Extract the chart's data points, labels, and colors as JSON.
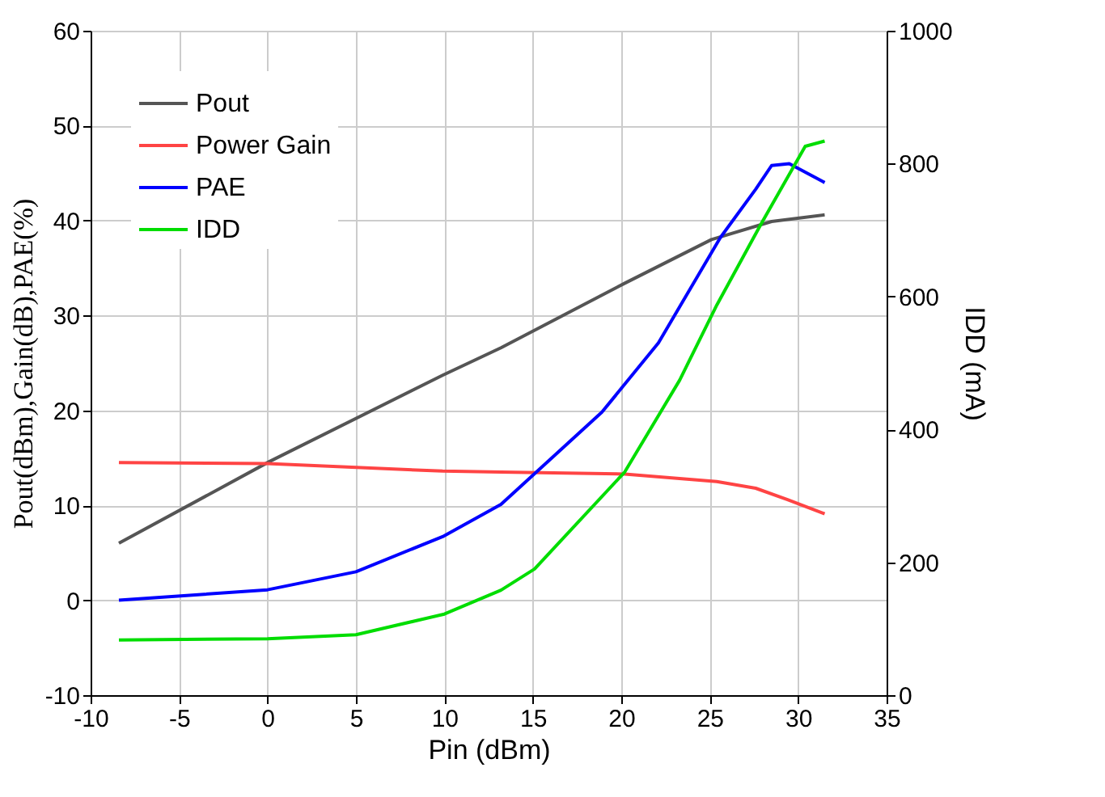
{
  "chart_data": {
    "type": "line",
    "xlabel": "Pin (dBm)",
    "ylabel": "Pout(dBm),Gain(dB),PAE(%)",
    "y2label": "IDD (mA)",
    "xlim": [
      -10,
      35
    ],
    "xticks": [
      -10,
      -5,
      0,
      5,
      10,
      15,
      20,
      25,
      30,
      35
    ],
    "ylim": [
      -10,
      60
    ],
    "yticks": [
      -10,
      0,
      10,
      20,
      30,
      40,
      50,
      60
    ],
    "y2lim": [
      0,
      1000
    ],
    "y2ticks": [
      0,
      200,
      400,
      600,
      800,
      1000
    ],
    "grid": true,
    "legend": "top left",
    "marker": "none",
    "line_style": "solid",
    "series": [
      {
        "name": "Pout",
        "color": "#555555",
        "x": [
          -8.4,
          0.1,
          9.9,
          13.2,
          20.2,
          25.1,
          28.5,
          31.5
        ],
        "values": [
          6.0,
          14.6,
          23.7,
          26.6,
          33.4,
          38.0,
          39.9,
          40.6
        ]
      },
      {
        "name": "Power Gain",
        "color": "#ff4444",
        "x": [
          -8.4,
          0,
          9.9,
          13.2,
          20.2,
          25.4,
          27.6,
          29.4,
          31.5
        ],
        "values": [
          14.5,
          14.4,
          13.6,
          13.5,
          13.3,
          12.5,
          11.8,
          10.6,
          9.1
        ]
      },
      {
        "name": "PAE",
        "color": "#0000ff",
        "x": [
          -8.4,
          0,
          5,
          9.9,
          13.2,
          18.9,
          22.1,
          25.6,
          27.6,
          28.5,
          29.5,
          31.5
        ],
        "values": [
          0.0,
          1.1,
          3.0,
          6.7,
          10.1,
          19.8,
          27.1,
          38.2,
          43.3,
          45.8,
          46.0,
          44.0
        ]
      },
      {
        "name": "IDD",
        "color": "#00dd00",
        "axis": "y2",
        "x": [
          -8.4,
          0,
          5,
          10,
          13.2,
          15.1,
          20.2,
          23.3,
          25.4,
          27.9,
          30.4,
          31.5
        ],
        "values": [
          83,
          85,
          91,
          122,
          158,
          190,
          336,
          474,
          587,
          709,
          826,
          834
        ]
      }
    ]
  }
}
